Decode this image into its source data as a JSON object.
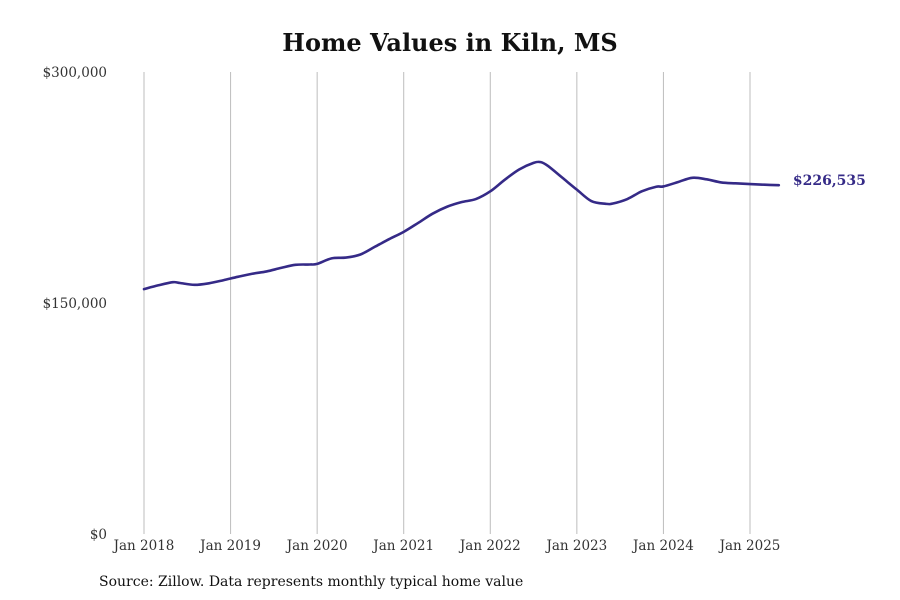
{
  "chart_data": {
    "type": "line",
    "title": "Home Values in Kiln, MS",
    "xlabel": "",
    "ylabel": "",
    "ylim": [
      0,
      300000
    ],
    "y_ticks": [
      {
        "value": 0,
        "label": "$0"
      },
      {
        "value": 150000,
        "label": "$150,000"
      },
      {
        "value": 300000,
        "label": "$300,000"
      }
    ],
    "x_ticks": [
      {
        "date": "2018-01",
        "label": "Jan 2018"
      },
      {
        "date": "2019-01",
        "label": "Jan 2019"
      },
      {
        "date": "2020-01",
        "label": "Jan 2020"
      },
      {
        "date": "2021-01",
        "label": "Jan 2021"
      },
      {
        "date": "2022-01",
        "label": "Jan 2022"
      },
      {
        "date": "2023-01",
        "label": "Jan 2023"
      },
      {
        "date": "2024-01",
        "label": "Jan 2024"
      },
      {
        "date": "2025-01",
        "label": "Jan 2025"
      }
    ],
    "grid": {
      "vertical": true,
      "horizontal": false
    },
    "line_color": "#352a87",
    "end_label": "$226,535",
    "series": [
      {
        "x": [
          "2018-01",
          "2018-03",
          "2018-05",
          "2018-06",
          "2018-08",
          "2018-10",
          "2018-12",
          "2019-02",
          "2019-04",
          "2019-06",
          "2019-08",
          "2019-10",
          "2019-12",
          "2020-01",
          "2020-03",
          "2020-05",
          "2020-07",
          "2020-09",
          "2020-11",
          "2021-01",
          "2021-03",
          "2021-05",
          "2021-07",
          "2021-09",
          "2021-11",
          "2022-01",
          "2022-03",
          "2022-05",
          "2022-07",
          "2022-08",
          "2022-09",
          "2022-11",
          "2023-01",
          "2023-03",
          "2023-05",
          "2023-06",
          "2023-08",
          "2023-10",
          "2023-12",
          "2024-01",
          "2024-03",
          "2024-05",
          "2024-07",
          "2024-09",
          "2024-11",
          "2025-01",
          "2025-03",
          "2025-05"
        ],
        "values": [
          159000,
          161500,
          163500,
          163000,
          161800,
          162800,
          164800,
          167000,
          169000,
          170500,
          172800,
          174800,
          175000,
          175400,
          179000,
          179500,
          181500,
          186500,
          191500,
          196200,
          202000,
          208000,
          212500,
          215500,
          217500,
          222500,
          230000,
          236700,
          241000,
          241500,
          239000,
          231300,
          223600,
          216200,
          214400,
          214600,
          217500,
          222500,
          225500,
          225700,
          228500,
          231300,
          230300,
          228300,
          227700,
          227200,
          226800,
          226535
        ]
      }
    ]
  },
  "footer": {
    "source": "Source: Zillow. Data represents monthly typical home value"
  }
}
